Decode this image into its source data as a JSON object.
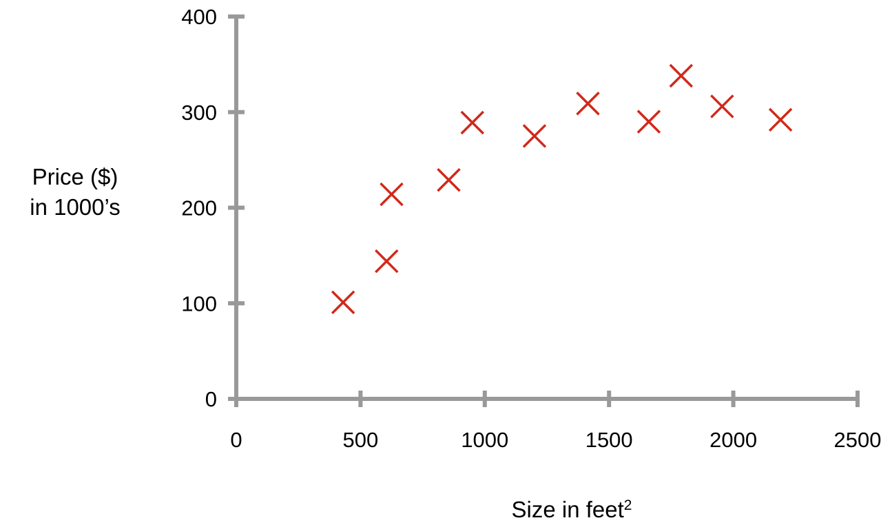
{
  "chart_data": {
    "type": "scatter",
    "title": "",
    "ylabel": {
      "line1": "Price ($)",
      "line2": "in 1000’s"
    },
    "xlabel": {
      "text": "Size in feet",
      "superscript": "2"
    },
    "xlim": [
      0,
      2500
    ],
    "ylim": [
      0,
      400
    ],
    "x_ticks": [
      0,
      500,
      1000,
      1500,
      2000,
      2500
    ],
    "y_ticks": [
      0,
      100,
      200,
      300,
      400
    ],
    "grid": false,
    "legend": "none",
    "marker": "x",
    "colors": {
      "axis": "#999999",
      "marker": "#d0291a"
    },
    "series": [
      {
        "points": [
          {
            "x": 430,
            "y": 101
          },
          {
            "x": 605,
            "y": 144
          },
          {
            "x": 625,
            "y": 214
          },
          {
            "x": 855,
            "y": 229
          },
          {
            "x": 950,
            "y": 289
          },
          {
            "x": 1200,
            "y": 275
          },
          {
            "x": 1415,
            "y": 309
          },
          {
            "x": 1660,
            "y": 290
          },
          {
            "x": 1790,
            "y": 338
          },
          {
            "x": 1955,
            "y": 306
          },
          {
            "x": 2190,
            "y": 292
          }
        ]
      }
    ]
  }
}
